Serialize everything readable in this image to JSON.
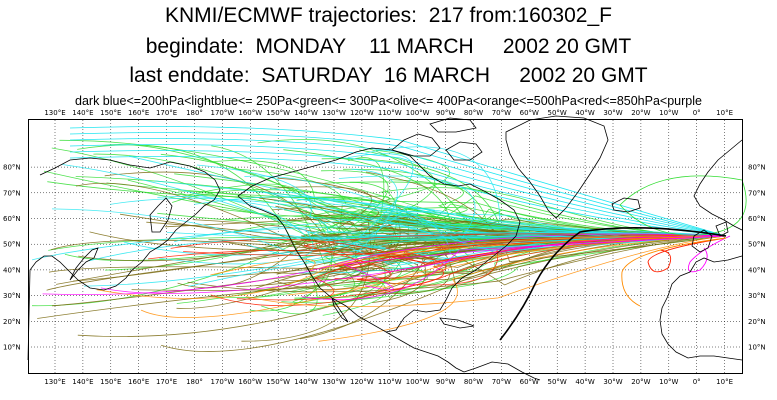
{
  "header": {
    "line1": "KNMI/ECMWF trajectories:  217 from:160302_F",
    "line2": "begindate:  MONDAY    11 MARCH     2002 20 GMT",
    "line3": "last enddate:  SATURDAY  16 MARCH     2002 20 GMT",
    "legend": "dark blue<=200hPa<lightblue<= 250Pa<green<= 300Pa<olive<= 400Pa<orange<=500hPa<red<=850hPa<purple"
  },
  "axes": {
    "lon_labels": [
      "130°E",
      "140°E",
      "150°E",
      "160°E",
      "170°E",
      "180°",
      "170°W",
      "160°W",
      "150°W",
      "140°W",
      "130°W",
      "120°W",
      "110°W",
      "100°W",
      "90°W",
      "80°W",
      "70°W",
      "60°W",
      "50°W",
      "40°W",
      "30°W",
      "20°W",
      "10°W",
      "0°",
      "10°E"
    ],
    "lat_labels": [
      "10°N",
      "20°N",
      "30°N",
      "40°N",
      "50°N",
      "60°N",
      "70°N",
      "80°N"
    ]
  },
  "colors": {
    "dark_blue": "#00008b",
    "light_blue": "#22e6f0",
    "green": "#33dd33",
    "olive": "#7a6a10",
    "orange": "#ff8c00",
    "red": "#ff2000",
    "purple": "#ff00ff",
    "coast": "#000000",
    "grid": "#000000"
  }
}
